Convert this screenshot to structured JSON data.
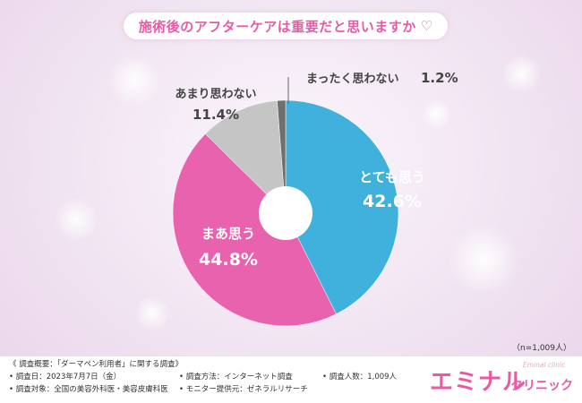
{
  "title": "施術後のアフターケアは重要だと思いますか",
  "title_icon": "heart-doodle-icon",
  "colors": {
    "accent": "#e85aa6",
    "blue": "#3fb1dc",
    "pink": "#e862ad",
    "gray": "#c5c5c5",
    "darkgray": "#6f6f6f"
  },
  "chart_data": {
    "type": "pie",
    "donut": true,
    "title": "施術後のアフターケアは重要だと思いますか",
    "slices": [
      {
        "label": "とても思う",
        "value": 42.6,
        "value_label": "42.6%",
        "color": "#3fb1dc"
      },
      {
        "label": "まあ思う",
        "value": 44.8,
        "value_label": "44.8%",
        "color": "#e862ad"
      },
      {
        "label": "あまり思わない",
        "value": 11.4,
        "value_label": "11.4%",
        "color": "#c5c5c5"
      },
      {
        "label": "まったく思わない",
        "value": 1.2,
        "value_label": "1.2%",
        "color": "#6f6f6f"
      }
    ],
    "start": "12 o'clock",
    "direction": "clockwise"
  },
  "sample_note": "（n=1,009人）",
  "footer": {
    "overview": "《 調査概要：「ダーマペン利用者」に関する調査》",
    "date": "• 調査日：2023年7月7日（金）",
    "target": "• 調査対象：全国の美容外科医・美容皮膚科医",
    "method": "• 調査方法：インターネット調査",
    "provider": "• モニター提供元：ゼネラルリサーチ",
    "count": "• 調査人数：1,009人"
  },
  "brand": {
    "name": "エミナル",
    "sub": "クリニック",
    "en": "Eminal clinic"
  }
}
